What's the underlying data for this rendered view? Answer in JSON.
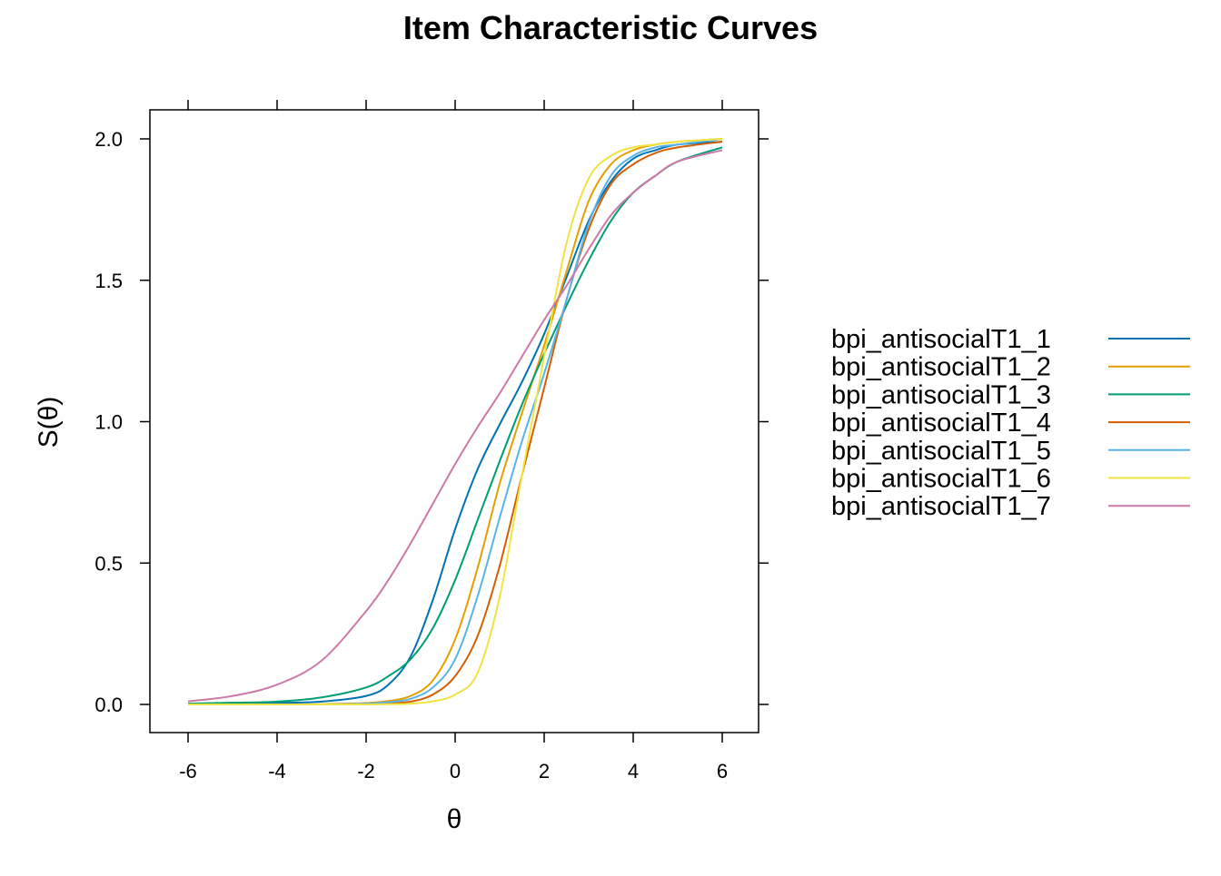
{
  "chart_data": {
    "type": "line",
    "title": "Item Characteristic Curves",
    "xlabel": "θ",
    "ylabel": "S(θ)",
    "xlim": [
      -6.85,
      6.85
    ],
    "ylim": [
      -0.1,
      2.1
    ],
    "xticks": [
      "-6",
      "-4",
      "-2",
      "0",
      "2",
      "4",
      "6"
    ],
    "yticks": [
      "0.0",
      "0.5",
      "1.0",
      "1.5",
      "2.0"
    ],
    "legend_position": "right",
    "x": [
      -6,
      -5,
      -4,
      -3,
      -2,
      -1.5,
      -1,
      -0.5,
      0,
      0.5,
      1,
      1.5,
      2,
      2.5,
      3,
      3.5,
      4,
      4.5,
      5,
      6
    ],
    "series": [
      {
        "name": "bpi_antisocialT1_1",
        "color": "#0072B2",
        "values": [
          0,
          0.001,
          0.005,
          0.01,
          0.03,
          0.07,
          0.17,
          0.37,
          0.62,
          0.83,
          0.99,
          1.14,
          1.31,
          1.51,
          1.71,
          1.85,
          1.93,
          1.96,
          1.98,
          1.99
        ]
      },
      {
        "name": "bpi_antisocialT1_2",
        "color": "#E69F00",
        "values": [
          0,
          0,
          0,
          0.001,
          0.005,
          0.012,
          0.03,
          0.085,
          0.23,
          0.48,
          0.78,
          1.03,
          1.27,
          1.53,
          1.78,
          1.91,
          1.96,
          1.98,
          1.99,
          2.0
        ]
      },
      {
        "name": "bpi_antisocialT1_3",
        "color": "#009E73",
        "values": [
          0.003,
          0.006,
          0.01,
          0.025,
          0.06,
          0.1,
          0.16,
          0.27,
          0.44,
          0.65,
          0.86,
          1.06,
          1.24,
          1.41,
          1.57,
          1.71,
          1.81,
          1.87,
          1.92,
          1.97
        ]
      },
      {
        "name": "bpi_antisocialT1_4",
        "color": "#D55E00",
        "values": [
          0,
          0,
          0,
          0,
          0.002,
          0.004,
          0.01,
          0.035,
          0.1,
          0.24,
          0.49,
          0.81,
          1.12,
          1.43,
          1.68,
          1.84,
          1.91,
          1.95,
          1.97,
          1.99
        ]
      },
      {
        "name": "bpi_antisocialT1_5",
        "color": "#56B4E9",
        "values": [
          0,
          0,
          0,
          0,
          0.003,
          0.008,
          0.02,
          0.06,
          0.16,
          0.38,
          0.66,
          0.93,
          1.17,
          1.43,
          1.7,
          1.87,
          1.94,
          1.97,
          1.98,
          2.0
        ]
      },
      {
        "name": "bpi_antisocialT1_6",
        "color": "#F0E442",
        "values": [
          0,
          0,
          0,
          0,
          0,
          0.001,
          0.003,
          0.011,
          0.035,
          0.11,
          0.38,
          0.81,
          1.23,
          1.63,
          1.86,
          1.94,
          1.97,
          1.98,
          1.99,
          2.0
        ]
      },
      {
        "name": "bpi_antisocialT1_7",
        "color": "#CC79A7",
        "values": [
          0.011,
          0.03,
          0.07,
          0.155,
          0.33,
          0.44,
          0.57,
          0.71,
          0.85,
          0.98,
          1.1,
          1.23,
          1.36,
          1.48,
          1.61,
          1.73,
          1.81,
          1.87,
          1.92,
          1.96
        ]
      }
    ]
  }
}
